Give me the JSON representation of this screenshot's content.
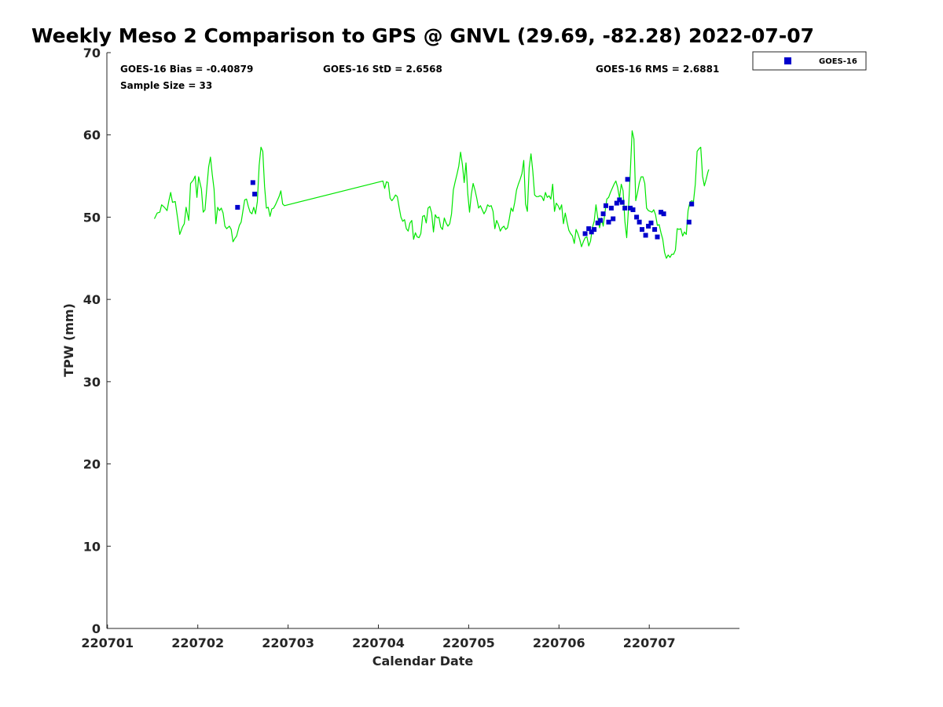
{
  "chart_data": {
    "type": "scatter",
    "title": "Weekly Meso 2 Comparison to GPS @ GNVL (29.69, -82.28) 2022-07-07",
    "xlabel": "Calendar Date",
    "ylabel": "TPW (mm)",
    "x_tick_labels": [
      "220701",
      "220702",
      "220703",
      "220704",
      "220705",
      "220706",
      "220707"
    ],
    "y_ticks": [
      0,
      10,
      20,
      30,
      40,
      50,
      60,
      70
    ],
    "ylim": [
      0,
      70
    ],
    "xlim_days": [
      0,
      7
    ],
    "grid": false,
    "legend": {
      "position": "outside-top-right",
      "entries": [
        "GOES-16"
      ]
    },
    "stats": {
      "bias": "GOES-16 Bias = -0.40879",
      "std": "GOES-16 StD = 2.6568",
      "rms": "GOES-16 RMS = 2.6881",
      "sample": "Sample Size = 33"
    },
    "colors": {
      "gps_line": "#00e600",
      "goes_marker": "#0000cc"
    },
    "series": [
      {
        "name": "GPS",
        "kind": "line",
        "points": [
          [
            0.52,
            49.8
          ],
          [
            0.55,
            50.5
          ],
          [
            0.58,
            50.6
          ],
          [
            0.6,
            51.5
          ],
          [
            0.63,
            51.2
          ],
          [
            0.66,
            50.8
          ],
          [
            0.68,
            52.0
          ],
          [
            0.7,
            53.0
          ],
          [
            0.72,
            51.8
          ],
          [
            0.75,
            51.9
          ],
          [
            0.78,
            49.6
          ],
          [
            0.8,
            47.9
          ],
          [
            0.83,
            48.8
          ],
          [
            0.85,
            49.2
          ],
          [
            0.87,
            51.2
          ],
          [
            0.9,
            49.6
          ],
          [
            0.92,
            54.1
          ],
          [
            0.95,
            54.5
          ],
          [
            0.97,
            55.0
          ],
          [
            0.99,
            52.4
          ],
          [
            1.01,
            54.9
          ],
          [
            1.04,
            53.4
          ],
          [
            1.06,
            50.6
          ],
          [
            1.08,
            50.9
          ],
          [
            1.1,
            53.6
          ],
          [
            1.12,
            56.1
          ],
          [
            1.14,
            57.3
          ],
          [
            1.16,
            55.2
          ],
          [
            1.18,
            53.4
          ],
          [
            1.2,
            49.2
          ],
          [
            1.22,
            51.2
          ],
          [
            1.24,
            50.8
          ],
          [
            1.26,
            51.1
          ],
          [
            1.28,
            50.5
          ],
          [
            1.3,
            48.9
          ],
          [
            1.32,
            48.6
          ],
          [
            1.35,
            48.9
          ],
          [
            1.37,
            48.5
          ],
          [
            1.39,
            47.0
          ],
          [
            1.41,
            47.4
          ],
          [
            1.43,
            47.7
          ],
          [
            1.46,
            49.0
          ],
          [
            1.48,
            49.4
          ],
          [
            1.5,
            50.8
          ],
          [
            1.52,
            52.1
          ],
          [
            1.54,
            52.2
          ],
          [
            1.56,
            51.3
          ],
          [
            1.58,
            50.6
          ],
          [
            1.6,
            50.4
          ],
          [
            1.62,
            51.2
          ],
          [
            1.64,
            50.4
          ],
          [
            1.66,
            51.9
          ],
          [
            1.68,
            56.3
          ],
          [
            1.7,
            58.5
          ],
          [
            1.72,
            58.0
          ],
          [
            1.74,
            53.7
          ],
          [
            1.76,
            51.1
          ],
          [
            1.78,
            51.2
          ],
          [
            1.8,
            50.1
          ],
          [
            1.82,
            51.0
          ],
          [
            1.84,
            51.1
          ],
          [
            1.86,
            51.5
          ],
          [
            1.88,
            52.0
          ],
          [
            1.9,
            52.5
          ],
          [
            1.92,
            53.2
          ],
          [
            1.94,
            51.6
          ],
          [
            1.96,
            51.4
          ],
          [
            3.05,
            54.4
          ],
          [
            3.07,
            53.5
          ],
          [
            3.09,
            54.3
          ],
          [
            3.11,
            54.2
          ],
          [
            3.13,
            52.3
          ],
          [
            3.15,
            52.0
          ],
          [
            3.17,
            52.3
          ],
          [
            3.19,
            52.7
          ],
          [
            3.21,
            52.5
          ],
          [
            3.23,
            51.2
          ],
          [
            3.25,
            50.0
          ],
          [
            3.27,
            49.5
          ],
          [
            3.29,
            49.7
          ],
          [
            3.31,
            48.6
          ],
          [
            3.33,
            48.3
          ],
          [
            3.35,
            49.3
          ],
          [
            3.37,
            49.6
          ],
          [
            3.39,
            47.3
          ],
          [
            3.41,
            48.1
          ],
          [
            3.43,
            47.6
          ],
          [
            3.45,
            47.5
          ],
          [
            3.47,
            48.0
          ],
          [
            3.49,
            50.1
          ],
          [
            3.51,
            50.2
          ],
          [
            3.53,
            49.3
          ],
          [
            3.55,
            51.1
          ],
          [
            3.57,
            51.3
          ],
          [
            3.59,
            50.5
          ],
          [
            3.61,
            48.2
          ],
          [
            3.63,
            50.3
          ],
          [
            3.65,
            49.9
          ],
          [
            3.67,
            50.0
          ],
          [
            3.69,
            48.8
          ],
          [
            3.71,
            48.5
          ],
          [
            3.73,
            49.9
          ],
          [
            3.75,
            49.3
          ],
          [
            3.77,
            48.9
          ],
          [
            3.79,
            49.2
          ],
          [
            3.81,
            50.4
          ],
          [
            3.83,
            53.3
          ],
          [
            3.85,
            54.3
          ],
          [
            3.87,
            55.2
          ],
          [
            3.89,
            56.2
          ],
          [
            3.91,
            57.9
          ],
          [
            3.93,
            56.4
          ],
          [
            3.95,
            54.2
          ],
          [
            3.97,
            56.6
          ],
          [
            3.99,
            52.8
          ],
          [
            4.01,
            50.6
          ],
          [
            4.03,
            52.8
          ],
          [
            4.05,
            54.1
          ],
          [
            4.07,
            53.3
          ],
          [
            4.09,
            52.3
          ],
          [
            4.11,
            51.1
          ],
          [
            4.13,
            51.4
          ],
          [
            4.15,
            50.9
          ],
          [
            4.17,
            50.4
          ],
          [
            4.19,
            50.8
          ],
          [
            4.21,
            51.5
          ],
          [
            4.23,
            51.3
          ],
          [
            4.25,
            51.4
          ],
          [
            4.27,
            50.7
          ],
          [
            4.29,
            48.6
          ],
          [
            4.31,
            49.6
          ],
          [
            4.33,
            49.1
          ],
          [
            4.35,
            48.3
          ],
          [
            4.37,
            48.7
          ],
          [
            4.39,
            48.9
          ],
          [
            4.41,
            48.5
          ],
          [
            4.43,
            48.7
          ],
          [
            4.45,
            49.8
          ],
          [
            4.47,
            51.1
          ],
          [
            4.49,
            50.7
          ],
          [
            4.51,
            51.8
          ],
          [
            4.53,
            53.3
          ],
          [
            4.55,
            54.0
          ],
          [
            4.57,
            54.6
          ],
          [
            4.59,
            55.3
          ],
          [
            4.61,
            56.9
          ],
          [
            4.63,
            51.6
          ],
          [
            4.65,
            50.7
          ],
          [
            4.67,
            56.0
          ],
          [
            4.69,
            57.7
          ],
          [
            4.71,
            55.6
          ],
          [
            4.73,
            52.7
          ],
          [
            4.75,
            52.5
          ],
          [
            4.77,
            52.5
          ],
          [
            4.79,
            52.6
          ],
          [
            4.81,
            52.5
          ],
          [
            4.83,
            52.0
          ],
          [
            4.85,
            53.0
          ],
          [
            4.87,
            52.4
          ],
          [
            4.89,
            52.6
          ],
          [
            4.91,
            52.2
          ],
          [
            4.93,
            54.0
          ],
          [
            4.95,
            50.7
          ],
          [
            4.97,
            51.7
          ],
          [
            4.99,
            51.4
          ],
          [
            5.01,
            50.9
          ],
          [
            5.03,
            51.5
          ],
          [
            5.05,
            49.2
          ],
          [
            5.07,
            50.5
          ],
          [
            5.09,
            49.4
          ],
          [
            5.11,
            48.4
          ],
          [
            5.13,
            48.0
          ],
          [
            5.15,
            47.7
          ],
          [
            5.17,
            46.8
          ],
          [
            5.19,
            48.5
          ],
          [
            5.21,
            48.0
          ],
          [
            5.23,
            47.3
          ],
          [
            5.25,
            46.4
          ],
          [
            5.27,
            47.0
          ],
          [
            5.29,
            47.5
          ],
          [
            5.31,
            47.6
          ],
          [
            5.33,
            46.5
          ],
          [
            5.35,
            47.1
          ],
          [
            5.37,
            48.7
          ],
          [
            5.39,
            49.5
          ],
          [
            5.41,
            51.5
          ],
          [
            5.43,
            49.9
          ],
          [
            5.45,
            48.7
          ],
          [
            5.47,
            49.9
          ],
          [
            5.49,
            48.9
          ],
          [
            5.51,
            50.6
          ],
          [
            5.53,
            52.2
          ],
          [
            5.55,
            52.4
          ],
          [
            5.57,
            53.0
          ],
          [
            5.59,
            53.5
          ],
          [
            5.61,
            54.0
          ],
          [
            5.63,
            54.4
          ],
          [
            5.65,
            53.6
          ],
          [
            5.67,
            52.3
          ],
          [
            5.69,
            54.0
          ],
          [
            5.71,
            53.2
          ],
          [
            5.73,
            49.5
          ],
          [
            5.75,
            47.5
          ],
          [
            5.77,
            51.1
          ],
          [
            5.79,
            55.5
          ],
          [
            5.81,
            60.5
          ],
          [
            5.83,
            59.5
          ],
          [
            5.85,
            52.0
          ],
          [
            5.87,
            53.0
          ],
          [
            5.89,
            54.2
          ],
          [
            5.91,
            54.9
          ],
          [
            5.93,
            54.9
          ],
          [
            5.95,
            54.1
          ],
          [
            5.97,
            51.1
          ],
          [
            5.99,
            50.8
          ],
          [
            6.01,
            50.7
          ],
          [
            6.03,
            50.6
          ],
          [
            6.05,
            50.9
          ],
          [
            6.07,
            50.3
          ],
          [
            6.09,
            49.0
          ],
          [
            6.11,
            49.1
          ],
          [
            6.13,
            48.1
          ],
          [
            6.15,
            47.3
          ],
          [
            6.17,
            45.7
          ],
          [
            6.19,
            45.0
          ],
          [
            6.21,
            45.4
          ],
          [
            6.23,
            45.1
          ],
          [
            6.25,
            45.5
          ],
          [
            6.27,
            45.5
          ],
          [
            6.29,
            46.0
          ],
          [
            6.31,
            48.6
          ],
          [
            6.33,
            48.5
          ],
          [
            6.35,
            48.6
          ],
          [
            6.37,
            47.7
          ],
          [
            6.39,
            48.2
          ],
          [
            6.41,
            47.9
          ],
          [
            6.43,
            50.8
          ],
          [
            6.45,
            51.8
          ],
          [
            6.47,
            52.0
          ],
          [
            6.49,
            51.9
          ],
          [
            6.51,
            54.0
          ],
          [
            6.53,
            58.0
          ],
          [
            6.55,
            58.3
          ],
          [
            6.57,
            58.5
          ],
          [
            6.59,
            55.0
          ],
          [
            6.61,
            53.8
          ],
          [
            6.63,
            54.6
          ],
          [
            6.65,
            55.5
          ],
          [
            6.66,
            55.8
          ]
        ]
      },
      {
        "name": "GOES-16",
        "kind": "markers",
        "points": [
          [
            1.44,
            51.2
          ],
          [
            1.61,
            54.2
          ],
          [
            1.63,
            52.8
          ],
          [
            5.29,
            48.0
          ],
          [
            5.33,
            48.6
          ],
          [
            5.36,
            48.2
          ],
          [
            5.39,
            48.5
          ],
          [
            5.43,
            49.3
          ],
          [
            5.46,
            49.6
          ],
          [
            5.49,
            50.4
          ],
          [
            5.52,
            51.4
          ],
          [
            5.55,
            49.4
          ],
          [
            5.58,
            51.1
          ],
          [
            5.6,
            49.8
          ],
          [
            5.64,
            51.7
          ],
          [
            5.67,
            52.1
          ],
          [
            5.7,
            51.8
          ],
          [
            5.73,
            51.1
          ],
          [
            5.76,
            54.6
          ],
          [
            5.79,
            51.1
          ],
          [
            5.82,
            50.9
          ],
          [
            5.86,
            50.0
          ],
          [
            5.89,
            49.4
          ],
          [
            5.92,
            48.5
          ],
          [
            5.96,
            47.8
          ],
          [
            5.99,
            48.9
          ],
          [
            6.02,
            49.3
          ],
          [
            6.06,
            48.5
          ],
          [
            6.09,
            47.6
          ],
          [
            6.13,
            50.6
          ],
          [
            6.16,
            50.4
          ],
          [
            6.44,
            49.4
          ],
          [
            6.47,
            51.6
          ]
        ]
      }
    ]
  }
}
